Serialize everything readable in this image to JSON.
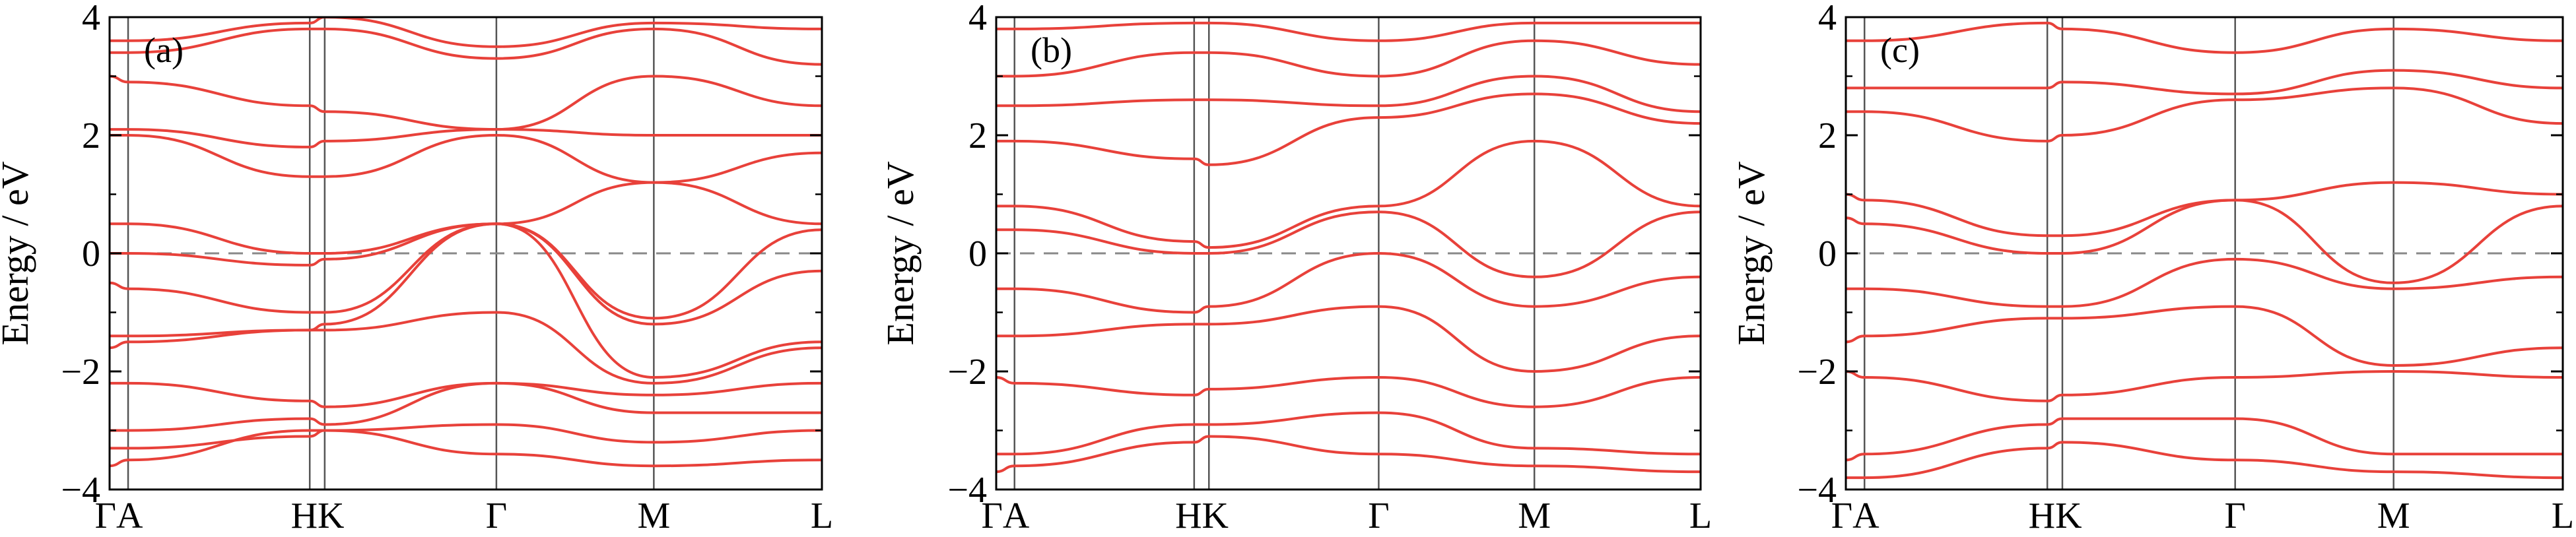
{
  "chart_data": [
    {
      "type": "line",
      "panel_label": "(a)",
      "ylabel": "Energy / eV",
      "ylim": [
        -4,
        4
      ],
      "yticks": [
        "4",
        "2",
        "0",
        "−2",
        "−4"
      ],
      "ytick_values": [
        4,
        2,
        0,
        -2,
        -4
      ],
      "x_ticks": [
        "Γ",
        "A",
        "H",
        "K",
        "Γ",
        "M",
        "L"
      ],
      "x_tick_positions": [
        0,
        0.026,
        0.281,
        0.302,
        0.543,
        0.764,
        1.0
      ],
      "x_label_texts": [
        "ΓA",
        "HK",
        "Γ",
        "M",
        "L"
      ],
      "x_label_positions": [
        0.013,
        0.292,
        0.543,
        0.764,
        1.0
      ],
      "fermi_level": 0,
      "line_color": "#e8413a",
      "series": [
        {
          "x": [
            0,
            0.026,
            0.281,
            0.302,
            0.543,
            0.764,
            1.0
          ],
          "values": [
            -3.6,
            -3.5,
            -3.0,
            -3.0,
            -3.4,
            -3.6,
            -3.5
          ]
        },
        {
          "x": [
            0,
            0.026,
            0.281,
            0.302,
            0.543,
            0.764,
            1.0
          ],
          "values": [
            -3.3,
            -3.3,
            -3.1,
            -3.0,
            -2.9,
            -3.2,
            -3.0
          ]
        },
        {
          "x": [
            0,
            0.026,
            0.281,
            0.302,
            0.543,
            0.764,
            1.0
          ],
          "values": [
            -3.0,
            -3.0,
            -2.8,
            -2.9,
            -2.2,
            -2.7,
            -2.7
          ]
        },
        {
          "x": [
            0,
            0.026,
            0.281,
            0.302,
            0.543,
            0.764,
            1.0
          ],
          "values": [
            -2.2,
            -2.2,
            -2.5,
            -2.6,
            -2.2,
            -2.4,
            -2.2
          ]
        },
        {
          "x": [
            0,
            0.026,
            0.281,
            0.302,
            0.543,
            0.764,
            1.0
          ],
          "values": [
            -1.6,
            -1.5,
            -1.3,
            -1.3,
            -1.0,
            -2.2,
            -1.6
          ]
        },
        {
          "x": [
            0,
            0.026,
            0.281,
            0.302,
            0.543,
            0.764,
            1.0
          ],
          "values": [
            -1.4,
            -1.4,
            -1.3,
            -1.2,
            0.5,
            -2.1,
            -1.5
          ]
        },
        {
          "x": [
            0,
            0.026,
            0.281,
            0.302,
            0.543,
            0.764,
            1.0
          ],
          "values": [
            -0.5,
            -0.6,
            -1.0,
            -1.0,
            0.5,
            -1.2,
            -0.3
          ]
        },
        {
          "x": [
            0,
            0.026,
            0.281,
            0.302,
            0.543,
            0.764,
            1.0
          ],
          "values": [
            0.0,
            0.0,
            -0.2,
            -0.1,
            0.5,
            -1.1,
            0.4
          ]
        },
        {
          "x": [
            0,
            0.026,
            0.281,
            0.302,
            0.543,
            0.764,
            1.0
          ],
          "values": [
            0.5,
            0.5,
            0.0,
            0.0,
            0.5,
            1.2,
            0.5
          ]
        },
        {
          "x": [
            0,
            0.026,
            0.281,
            0.302,
            0.543,
            0.764,
            1.0
          ],
          "values": [
            2.0,
            2.0,
            1.3,
            1.3,
            2.0,
            1.2,
            1.7
          ]
        },
        {
          "x": [
            0,
            0.026,
            0.281,
            0.302,
            0.543,
            0.764,
            1.0
          ],
          "values": [
            2.1,
            2.1,
            1.8,
            1.9,
            2.1,
            2.0,
            2.0
          ]
        },
        {
          "x": [
            0,
            0.026,
            0.281,
            0.302,
            0.543,
            0.764,
            1.0
          ],
          "values": [
            3.0,
            2.9,
            2.5,
            2.4,
            2.1,
            3.0,
            2.5
          ]
        },
        {
          "x": [
            0,
            0.026,
            0.281,
            0.302,
            0.543,
            0.764,
            1.0
          ],
          "values": [
            3.4,
            3.4,
            3.8,
            3.8,
            3.3,
            3.8,
            3.2
          ]
        },
        {
          "x": [
            0,
            0.026,
            0.281,
            0.302,
            0.543,
            0.764,
            1.0
          ],
          "values": [
            3.6,
            3.6,
            3.9,
            4.0,
            3.5,
            3.9,
            3.8
          ]
        }
      ]
    },
    {
      "type": "line",
      "panel_label": "(b)",
      "ylabel": "Energy / eV",
      "ylim": [
        -4,
        4
      ],
      "yticks": [
        "4",
        "2",
        "0",
        "−2",
        "−4"
      ],
      "ytick_values": [
        4,
        2,
        0,
        -2,
        -4
      ],
      "x_ticks": [
        "Γ",
        "A",
        "H",
        "K",
        "Γ",
        "M",
        "L"
      ],
      "x_tick_positions": [
        0,
        0.026,
        0.281,
        0.302,
        0.543,
        0.764,
        1.0
      ],
      "x_label_texts": [
        "ΓA",
        "HK",
        "Γ",
        "M",
        "L"
      ],
      "x_label_positions": [
        0.013,
        0.292,
        0.543,
        0.764,
        1.0
      ],
      "fermi_level": 0,
      "line_color": "#e8413a",
      "series": [
        {
          "x": [
            0,
            0.026,
            0.281,
            0.302,
            0.543,
            0.764,
            1.0
          ],
          "values": [
            -3.7,
            -3.6,
            -3.2,
            -3.1,
            -3.4,
            -3.6,
            -3.7
          ]
        },
        {
          "x": [
            0,
            0.026,
            0.281,
            0.302,
            0.543,
            0.764,
            1.0
          ],
          "values": [
            -3.4,
            -3.4,
            -2.9,
            -2.9,
            -2.7,
            -3.3,
            -3.4
          ]
        },
        {
          "x": [
            0,
            0.026,
            0.281,
            0.302,
            0.543,
            0.764,
            1.0
          ],
          "values": [
            -2.1,
            -2.2,
            -2.4,
            -2.3,
            -2.1,
            -2.6,
            -2.1
          ]
        },
        {
          "x": [
            0,
            0.026,
            0.281,
            0.302,
            0.543,
            0.764,
            1.0
          ],
          "values": [
            -1.4,
            -1.4,
            -1.2,
            -1.2,
            -0.9,
            -2.0,
            -1.4
          ]
        },
        {
          "x": [
            0,
            0.026,
            0.281,
            0.302,
            0.543,
            0.764,
            1.0
          ],
          "values": [
            -0.6,
            -0.6,
            -1.0,
            -0.9,
            0.0,
            -0.9,
            -0.4
          ]
        },
        {
          "x": [
            0,
            0.026,
            0.281,
            0.302,
            0.543,
            0.764,
            1.0
          ],
          "values": [
            0.4,
            0.4,
            0.0,
            0.0,
            0.7,
            -0.4,
            0.7
          ]
        },
        {
          "x": [
            0,
            0.026,
            0.281,
            0.302,
            0.543,
            0.764,
            1.0
          ],
          "values": [
            0.8,
            0.8,
            0.2,
            0.1,
            0.8,
            1.9,
            0.8
          ]
        },
        {
          "x": [
            0,
            0.026,
            0.281,
            0.302,
            0.543,
            0.764,
            1.0
          ],
          "values": [
            1.9,
            1.9,
            1.6,
            1.5,
            2.3,
            2.7,
            2.2
          ]
        },
        {
          "x": [
            0,
            0.026,
            0.281,
            0.302,
            0.543,
            0.764,
            1.0
          ],
          "values": [
            2.5,
            2.5,
            2.6,
            2.6,
            2.5,
            3.0,
            2.4
          ]
        },
        {
          "x": [
            0,
            0.026,
            0.281,
            0.302,
            0.543,
            0.764,
            1.0
          ],
          "values": [
            3.0,
            3.0,
            3.4,
            3.4,
            3.0,
            3.6,
            3.2
          ]
        },
        {
          "x": [
            0,
            0.026,
            0.281,
            0.302,
            0.543,
            0.764,
            1.0
          ],
          "values": [
            3.8,
            3.8,
            3.9,
            3.9,
            3.6,
            3.9,
            3.9
          ]
        }
      ]
    },
    {
      "type": "line",
      "panel_label": "(c)",
      "ylabel": "Energy / eV",
      "ylim": [
        -4,
        4
      ],
      "yticks": [
        "4",
        "2",
        "0",
        "−2",
        "−4"
      ],
      "ytick_values": [
        4,
        2,
        0,
        -2,
        -4
      ],
      "x_ticks": [
        "Γ",
        "A",
        "H",
        "K",
        "Γ",
        "M",
        "L"
      ],
      "x_tick_positions": [
        0,
        0.026,
        0.281,
        0.302,
        0.543,
        0.764,
        1.0
      ],
      "x_label_texts": [
        "ΓA",
        "HK",
        "Γ",
        "M",
        "L"
      ],
      "x_label_positions": [
        0.013,
        0.292,
        0.543,
        0.764,
        1.0
      ],
      "fermi_level": 0,
      "line_color": "#e8413a",
      "series": [
        {
          "x": [
            0,
            0.026,
            0.281,
            0.302,
            0.543,
            0.764,
            1.0
          ],
          "values": [
            -3.8,
            -3.8,
            -3.3,
            -3.2,
            -3.5,
            -3.7,
            -3.8
          ]
        },
        {
          "x": [
            0,
            0.026,
            0.281,
            0.302,
            0.543,
            0.764,
            1.0
          ],
          "values": [
            -3.5,
            -3.4,
            -2.9,
            -2.8,
            -2.8,
            -3.4,
            -3.4
          ]
        },
        {
          "x": [
            0,
            0.026,
            0.281,
            0.302,
            0.543,
            0.764,
            1.0
          ],
          "values": [
            -2.0,
            -2.1,
            -2.5,
            -2.4,
            -2.1,
            -2.0,
            -2.1
          ]
        },
        {
          "x": [
            0,
            0.026,
            0.281,
            0.302,
            0.543,
            0.764,
            1.0
          ],
          "values": [
            -1.5,
            -1.4,
            -1.1,
            -1.1,
            -0.9,
            -1.9,
            -1.6
          ]
        },
        {
          "x": [
            0,
            0.026,
            0.281,
            0.302,
            0.543,
            0.764,
            1.0
          ],
          "values": [
            -0.6,
            -0.6,
            -0.9,
            -0.9,
            -0.1,
            -0.6,
            -0.4
          ]
        },
        {
          "x": [
            0,
            0.026,
            0.281,
            0.302,
            0.543,
            0.764,
            1.0
          ],
          "values": [
            0.6,
            0.5,
            0.0,
            0.0,
            0.9,
            -0.5,
            0.8
          ]
        },
        {
          "x": [
            0,
            0.026,
            0.281,
            0.302,
            0.543,
            0.764,
            1.0
          ],
          "values": [
            1.0,
            0.9,
            0.3,
            0.3,
            0.9,
            1.2,
            1.0
          ]
        },
        {
          "x": [
            0,
            0.026,
            0.281,
            0.302,
            0.543,
            0.764,
            1.0
          ],
          "values": [
            2.4,
            2.4,
            1.9,
            2.0,
            2.6,
            2.8,
            2.2
          ]
        },
        {
          "x": [
            0,
            0.026,
            0.281,
            0.302,
            0.543,
            0.764,
            1.0
          ],
          "values": [
            2.8,
            2.8,
            2.8,
            2.9,
            2.7,
            3.1,
            2.8
          ]
        },
        {
          "x": [
            0,
            0.026,
            0.281,
            0.302,
            0.543,
            0.764,
            1.0
          ],
          "values": [
            3.6,
            3.6,
            3.9,
            3.8,
            3.4,
            3.8,
            3.6
          ]
        }
      ]
    }
  ]
}
